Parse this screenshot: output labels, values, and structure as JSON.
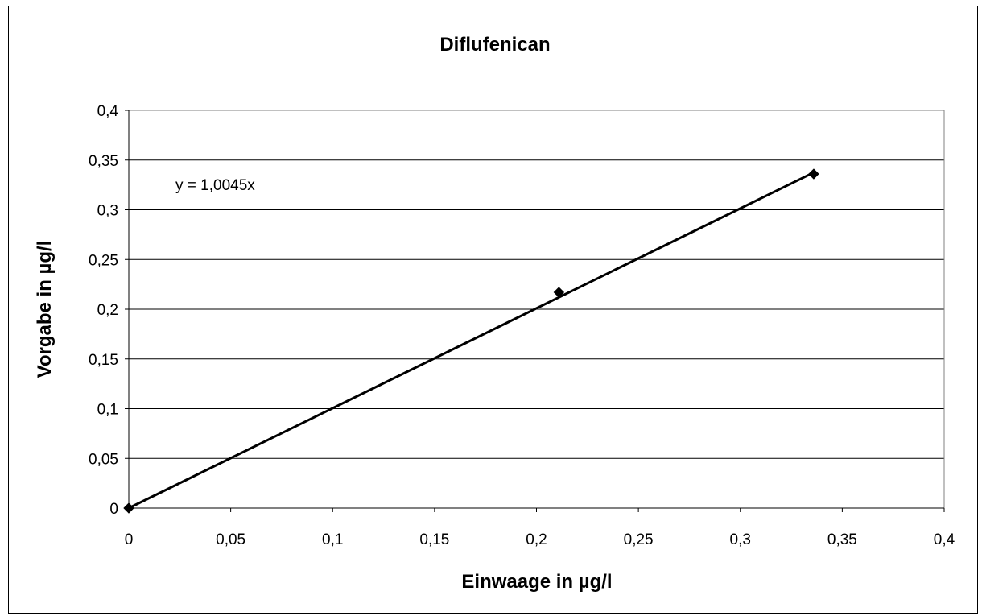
{
  "chart_data": {
    "type": "scatter",
    "title": "Diflufenican",
    "xlabel": "Einwaage in µg/l",
    "ylabel": "Vorgabe in µg/l",
    "xlim": [
      0,
      0.4
    ],
    "ylim": [
      0,
      0.4
    ],
    "x_ticks": [
      "0",
      "0,05",
      "0,1",
      "0,15",
      "0,2",
      "0,25",
      "0,3",
      "0,35",
      "0,4"
    ],
    "y_ticks": [
      "0",
      "0,05",
      "0,1",
      "0,15",
      "0,2",
      "0,25",
      "0,3",
      "0,35",
      "0,4"
    ],
    "grid": "horizontal",
    "legend": "none",
    "series": [
      {
        "marker": "diamond",
        "color": "#000000",
        "points": [
          {
            "x": 0,
            "y": 0
          },
          {
            "x": 0.211,
            "y": 0.217
          },
          {
            "x": 0.336,
            "y": 0.336
          }
        ]
      }
    ],
    "trendline": {
      "type": "linear",
      "slope": 1.0045,
      "intercept": 0,
      "x_range": [
        0,
        0.336
      ],
      "equation_label": "y = 1,0045x",
      "color": "#000000"
    }
  }
}
